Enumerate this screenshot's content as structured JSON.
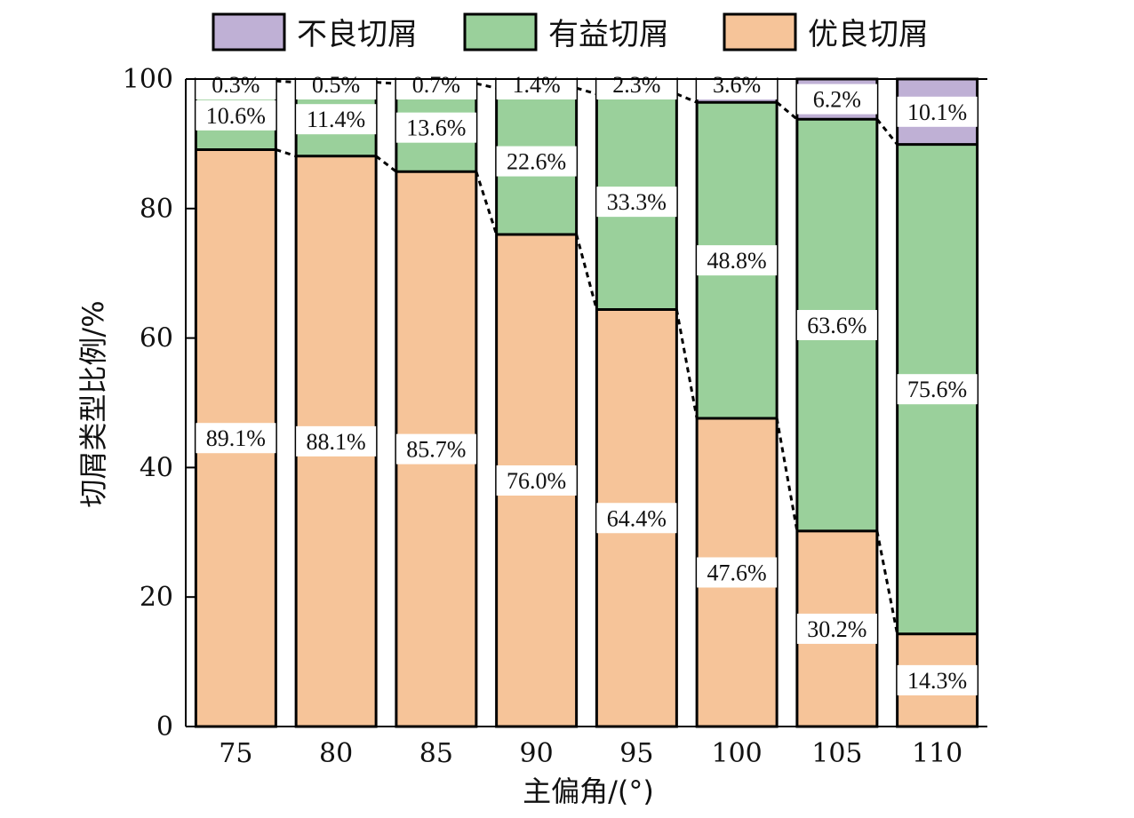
{
  "chart_data": {
    "type": "bar",
    "stacked": true,
    "categories": [
      "75",
      "80",
      "85",
      "90",
      "95",
      "100",
      "105",
      "110"
    ],
    "series": [
      {
        "name": "优良切屑",
        "color": "#F6C499",
        "values": [
          89.1,
          88.1,
          85.7,
          76.0,
          64.4,
          47.6,
          30.2,
          14.3
        ]
      },
      {
        "name": "有益切屑",
        "color": "#9AD09B",
        "values": [
          10.6,
          11.4,
          13.6,
          22.6,
          33.3,
          48.8,
          63.6,
          75.6
        ]
      },
      {
        "name": "不良切屑",
        "color": "#BFB0D5",
        "values": [
          0.3,
          0.5,
          0.7,
          1.4,
          2.3,
          3.6,
          6.2,
          10.1
        ]
      }
    ],
    "legend_order": [
      "不良切屑",
      "有益切屑",
      "优良切屑"
    ],
    "legend_position": "top",
    "xlabel": "主偏角/(°)",
    "ylabel": "切屑类型比例/%",
    "ylim": [
      0,
      100
    ],
    "yticks": [
      0,
      20,
      40,
      60,
      80,
      100
    ],
    "label_suffix": "%",
    "connector_lines": "dashed"
  }
}
